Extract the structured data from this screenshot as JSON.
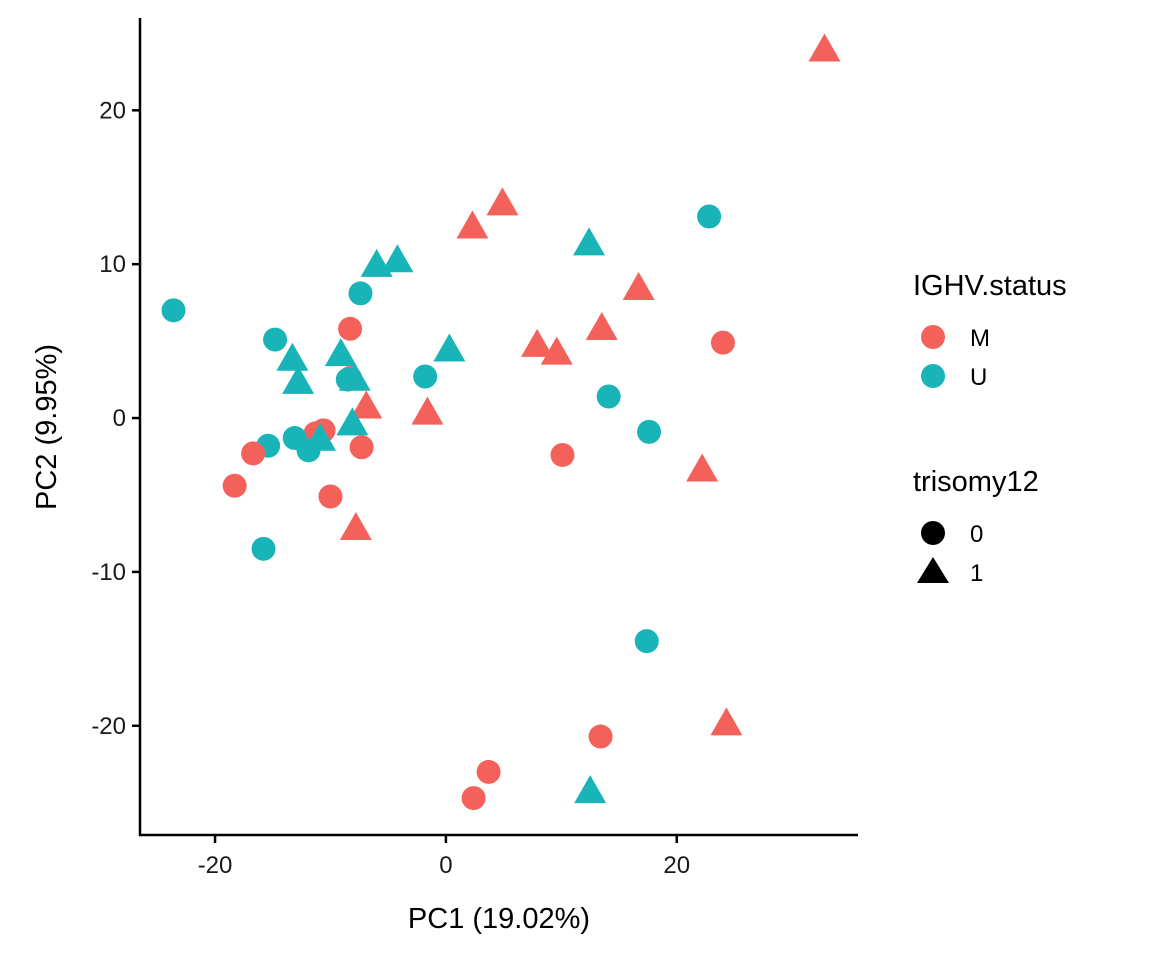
{
  "chart_data": {
    "type": "scatter",
    "title": "",
    "xlabel": "PC1 (19.02%)",
    "ylabel": "PC2 (9.95%)",
    "xlim": [
      -26.5,
      35.7
    ],
    "ylim": [
      -27.1,
      26.0
    ],
    "xticks": [
      -20,
      0,
      20
    ],
    "xtick_labels": [
      "-20",
      "0",
      "20"
    ],
    "yticks": [
      -20,
      -10,
      0,
      10,
      20
    ],
    "ytick_labels": [
      "-20",
      "-10",
      "0",
      "10",
      "20"
    ],
    "grid": false,
    "legend_position": "right",
    "legends": [
      {
        "title": "IGHV.status",
        "aesthetic": "color",
        "entries": [
          {
            "label": "M",
            "color": "#F8766D"
          },
          {
            "label": "U",
            "color": "#00BFC4"
          }
        ]
      },
      {
        "title": "trisomy12",
        "aesthetic": "shape",
        "entries": [
          {
            "label": "0",
            "shape": "circle"
          },
          {
            "label": "1",
            "shape": "triangle"
          }
        ]
      }
    ],
    "colors": {
      "M": "#F4615A",
      "U": "#18B4B8"
    },
    "points": [
      {
        "x": 32.8,
        "y": 23.9,
        "IGHV": "M",
        "trisomy12": "1"
      },
      {
        "x": 22.8,
        "y": 13.1,
        "IGHV": "U",
        "trisomy12": "0"
      },
      {
        "x": 4.9,
        "y": 13.9,
        "IGHV": "M",
        "trisomy12": "1"
      },
      {
        "x": 2.3,
        "y": 12.4,
        "IGHV": "M",
        "trisomy12": "1"
      },
      {
        "x": 12.4,
        "y": 11.3,
        "IGHV": "U",
        "trisomy12": "1"
      },
      {
        "x": -4.2,
        "y": 10.2,
        "IGHV": "U",
        "trisomy12": "1"
      },
      {
        "x": -6.0,
        "y": 9.9,
        "IGHV": "U",
        "trisomy12": "1"
      },
      {
        "x": 16.7,
        "y": 8.4,
        "IGHV": "M",
        "trisomy12": "1"
      },
      {
        "x": -7.4,
        "y": 8.1,
        "IGHV": "U",
        "trisomy12": "0"
      },
      {
        "x": -23.6,
        "y": 7.0,
        "IGHV": "U",
        "trisomy12": "0"
      },
      {
        "x": -8.3,
        "y": 5.8,
        "IGHV": "M",
        "trisomy12": "0"
      },
      {
        "x": 13.5,
        "y": 5.8,
        "IGHV": "M",
        "trisomy12": "1"
      },
      {
        "x": 24.0,
        "y": 4.9,
        "IGHV": "M",
        "trisomy12": "0"
      },
      {
        "x": -14.8,
        "y": 5.1,
        "IGHV": "U",
        "trisomy12": "0"
      },
      {
        "x": 7.9,
        "y": 4.7,
        "IGHV": "M",
        "trisomy12": "1"
      },
      {
        "x": 9.6,
        "y": 4.2,
        "IGHV": "M",
        "trisomy12": "1"
      },
      {
        "x": 0.3,
        "y": 4.4,
        "IGHV": "U",
        "trisomy12": "1"
      },
      {
        "x": -9.1,
        "y": 4.1,
        "IGHV": "U",
        "trisomy12": "1"
      },
      {
        "x": -13.3,
        "y": 3.8,
        "IGHV": "U",
        "trisomy12": "1"
      },
      {
        "x": -12.8,
        "y": 2.3,
        "IGHV": "U",
        "trisomy12": "1"
      },
      {
        "x": -8.3,
        "y": 2.6,
        "IGHV": "M",
        "trisomy12": "0"
      },
      {
        "x": -8.5,
        "y": 2.5,
        "IGHV": "U",
        "trisomy12": "0"
      },
      {
        "x": -7.9,
        "y": 2.5,
        "IGHV": "U",
        "trisomy12": "1"
      },
      {
        "x": -1.8,
        "y": 2.7,
        "IGHV": "U",
        "trisomy12": "0"
      },
      {
        "x": 14.1,
        "y": 1.4,
        "IGHV": "U",
        "trisomy12": "0"
      },
      {
        "x": -6.9,
        "y": 0.7,
        "IGHV": "M",
        "trisomy12": "1"
      },
      {
        "x": -1.6,
        "y": 0.3,
        "IGHV": "M",
        "trisomy12": "1"
      },
      {
        "x": -8.1,
        "y": -0.4,
        "IGHV": "U",
        "trisomy12": "1"
      },
      {
        "x": 17.6,
        "y": -0.9,
        "IGHV": "U",
        "trisomy12": "0"
      },
      {
        "x": -10.6,
        "y": -0.8,
        "IGHV": "M",
        "trisomy12": "0"
      },
      {
        "x": -11.3,
        "y": -1.0,
        "IGHV": "M",
        "trisomy12": "0"
      },
      {
        "x": -10.9,
        "y": -1.4,
        "IGHV": "U",
        "trisomy12": "1"
      },
      {
        "x": -13.1,
        "y": -1.3,
        "IGHV": "U",
        "trisomy12": "0"
      },
      {
        "x": -11.9,
        "y": -2.1,
        "IGHV": "U",
        "trisomy12": "0"
      },
      {
        "x": -15.4,
        "y": -1.8,
        "IGHV": "U",
        "trisomy12": "0"
      },
      {
        "x": -7.3,
        "y": -1.9,
        "IGHV": "M",
        "trisomy12": "0"
      },
      {
        "x": -16.7,
        "y": -2.3,
        "IGHV": "M",
        "trisomy12": "0"
      },
      {
        "x": 10.1,
        "y": -2.4,
        "IGHV": "M",
        "trisomy12": "0"
      },
      {
        "x": 22.2,
        "y": -3.4,
        "IGHV": "M",
        "trisomy12": "1"
      },
      {
        "x": -18.3,
        "y": -4.4,
        "IGHV": "M",
        "trisomy12": "0"
      },
      {
        "x": -10.0,
        "y": -5.1,
        "IGHV": "M",
        "trisomy12": "0"
      },
      {
        "x": -7.8,
        "y": -7.2,
        "IGHV": "M",
        "trisomy12": "1"
      },
      {
        "x": -15.8,
        "y": -8.5,
        "IGHV": "U",
        "trisomy12": "0"
      },
      {
        "x": 17.4,
        "y": -14.5,
        "IGHV": "U",
        "trisomy12": "0"
      },
      {
        "x": 24.3,
        "y": -19.9,
        "IGHV": "M",
        "trisomy12": "1"
      },
      {
        "x": 13.4,
        "y": -20.7,
        "IGHV": "M",
        "trisomy12": "0"
      },
      {
        "x": 3.7,
        "y": -23.0,
        "IGHV": "M",
        "trisomy12": "0"
      },
      {
        "x": 2.4,
        "y": -24.7,
        "IGHV": "M",
        "trisomy12": "0"
      },
      {
        "x": 12.5,
        "y": -24.3,
        "IGHV": "U",
        "trisomy12": "1"
      }
    ]
  }
}
